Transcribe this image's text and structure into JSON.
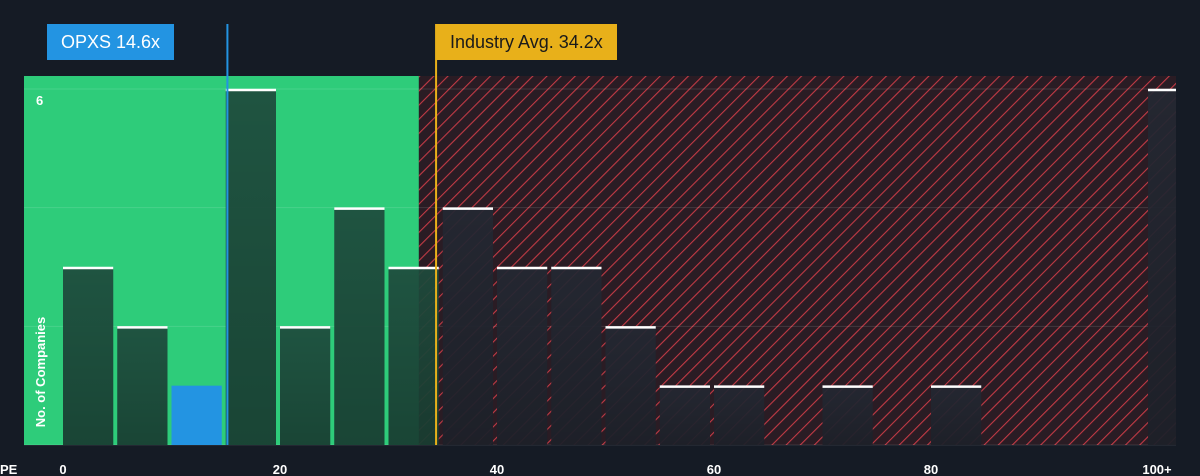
{
  "chart_data": {
    "type": "bar",
    "xlabel": "PE",
    "ylabel": "No. of Companies",
    "x_ticks": [
      "0",
      "20",
      "40",
      "60",
      "80",
      "100+"
    ],
    "y_ticks": [
      "6"
    ],
    "bin_width": 5,
    "bins": [
      {
        "start": 0,
        "count": 3
      },
      {
        "start": 5,
        "count": 2
      },
      {
        "start": 10,
        "count": 1
      },
      {
        "start": 15,
        "count": 6
      },
      {
        "start": 20,
        "count": 2
      },
      {
        "start": 25,
        "count": 4
      },
      {
        "start": 30,
        "count": 3
      },
      {
        "start": 35,
        "count": 4
      },
      {
        "start": 40,
        "count": 3
      },
      {
        "start": 45,
        "count": 3
      },
      {
        "start": 50,
        "count": 2
      },
      {
        "start": 55,
        "count": 1
      },
      {
        "start": 60,
        "count": 1
      },
      {
        "start": 70,
        "count": 1
      },
      {
        "start": 80,
        "count": 1
      },
      {
        "start": 100,
        "count": 6
      }
    ],
    "highlight_bin_start": 10,
    "ylim": [
      0,
      6
    ],
    "company": {
      "label": "OPXS 14.6x",
      "value": 14.6
    },
    "industry": {
      "label": "Industry Avg. 34.2x",
      "value": 34.2
    },
    "fair_zone_end": 32.8,
    "colors": {
      "background": "#151b25",
      "fair_zone": "#2ecc7a",
      "bar_in_zone": "#1e4a3c",
      "bar_out_zone": "#242833",
      "highlight_bar": "#2394e2",
      "company": "#2394e2",
      "industry": "#e8b01a",
      "hatch_line": "#c23a45",
      "hatch_bg": "#2a1c24",
      "bar_top": "#ffffff"
    }
  }
}
